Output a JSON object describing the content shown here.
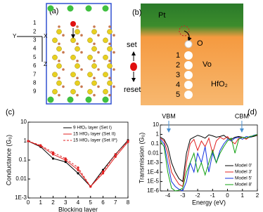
{
  "panels": {
    "a": {
      "label": "(a)",
      "layers": [
        "1",
        "2",
        "3",
        "4",
        "5",
        "6",
        "7",
        "8",
        "9"
      ],
      "axes": [
        "Y",
        "X",
        "Z"
      ]
    },
    "b": {
      "label": "(b)",
      "electrode": "Pt",
      "atom": "O",
      "vacancy": "Vo",
      "oxide": "HfO₂",
      "sites": [
        "1",
        "2",
        "3",
        "4",
        "5"
      ],
      "set": "set",
      "reset": "reset"
    }
  },
  "chart_data": [
    {
      "type": "line",
      "label": "(c)",
      "xlabel": "Blocking layer",
      "ylabel": "Conductance (G₀)",
      "ylog": true,
      "x": [
        0,
        1,
        2,
        3,
        4,
        5,
        6,
        7,
        8
      ],
      "xlim": [
        0,
        8
      ],
      "xticks": [
        0,
        1,
        2,
        3,
        4,
        5,
        6,
        7,
        8
      ],
      "ylim": [
        0.001,
        10
      ],
      "yticks": [
        {
          "value": 0.001,
          "label": "1E-3"
        },
        0.01,
        0.1,
        1,
        10
      ],
      "legend": "upper-right",
      "series": [
        {
          "name": "9 HfO₂ layer (Set I)",
          "color": "#000000",
          "style": "solid",
          "values": [
            1,
            0.5,
            0.12,
            0.08,
            0.02,
            0.004,
            0.03,
            0.2,
            1.1
          ]
        },
        {
          "name": "15 HfO₂ layer (Set II)",
          "color": "#e02020",
          "style": "solid",
          "values": [
            1,
            0.55,
            0.2,
            0.1,
            0.03,
            0.004,
            0.02,
            0.15,
            0.9
          ]
        },
        {
          "name": "15 HfO₂ layer (Set II*)",
          "color": "#e02020",
          "style": "dashed",
          "values": [
            1,
            0.6,
            0.25,
            0.12,
            0.04,
            0.004,
            0.025,
            0.2,
            1.0
          ]
        }
      ]
    },
    {
      "type": "line",
      "label": "(d)",
      "xlabel": "Energy (eV)",
      "ylabel": "Transmission (G₀)",
      "ylog": true,
      "annotations": [
        "VBM",
        "CBM"
      ],
      "x": [
        -4.5,
        -4.25,
        -4,
        -3.75,
        -3.5,
        -3.25,
        -3,
        -2.75,
        -2.5,
        -2.25,
        -2,
        -1.75,
        -1.5,
        -1.25,
        -1,
        -0.75,
        -0.5,
        -0.25,
        0,
        0.25,
        0.5,
        0.75,
        1,
        1.25,
        1.5,
        1.75,
        2
      ],
      "xlim": [
        -4.5,
        2
      ],
      "xticks": [
        -4,
        -3,
        -2,
        -1,
        0,
        1,
        2
      ],
      "ylim": [
        1e-06,
        10
      ],
      "yticks": [
        {
          "value": 1e-06,
          "label": "1E-6"
        },
        {
          "value": 1e-05,
          "label": "1E-5"
        },
        {
          "value": 0.0001,
          "label": "1E-4"
        },
        {
          "value": 0.001,
          "label": "1E-3"
        },
        0.01,
        0.1,
        1,
        10
      ],
      "legend": "lower-right",
      "series": [
        {
          "name": "Model 0'",
          "color": "#000000",
          "style": "solid",
          "values": [
            0.5,
            0.3,
            0.05,
            0.001,
            0.0001,
            2e-05,
            1e-05,
            0.01,
            0.3,
            0.5,
            0.8,
            0.6,
            0.4,
            0.9,
            0.7,
            0.5,
            0.6,
            0.8,
            0.4,
            0.3,
            0.5,
            0.6,
            0.5,
            0.4,
            0.5,
            0.6,
            0.8
          ]
        },
        {
          "name": "Model 3'",
          "color": "#e02020",
          "style": "solid",
          "values": [
            0.4,
            0.2,
            0.01,
            0.0001,
            2e-05,
            5e-06,
            3e-06,
            0.001,
            0.1,
            0.3,
            0.02,
            0.2,
            0.05,
            0.4,
            0.01,
            0.2,
            0.5,
            0.3,
            0.6,
            0.2,
            0.1,
            0.4,
            0.5,
            0.3,
            0.6,
            0.7,
            0.9
          ]
        },
        {
          "name": "Model 5'",
          "color": "#1030e0",
          "style": "solid",
          "values": [
            0.3,
            0.1,
            0.001,
            1e-05,
            3e-06,
            1.5e-06,
            1e-06,
            1e-05,
            0.001,
            0.0001,
            0.01,
            0.001,
            0.05,
            0.0001,
            0.01,
            0.001,
            0.02,
            0.1,
            0.3,
            0.2,
            0.4,
            0.5,
            0.3,
            0.6,
            0.5,
            0.8,
            1
          ]
        },
        {
          "name": "Model 8'",
          "color": "#10a010",
          "style": "solid",
          "values": [
            0.2,
            0.05,
            0.0001,
            2e-06,
            1e-06,
            1.2e-06,
            2e-06,
            0.0001,
            0.001,
            0.01,
            0.0001,
            0.001,
            5e-05,
            0.001,
            0.02,
            0.001,
            0.01,
            0.05,
            0.2,
            0.4,
            0.01,
            0.3,
            0.5,
            0.4,
            0.6,
            0.7,
            1
          ]
        }
      ]
    }
  ]
}
